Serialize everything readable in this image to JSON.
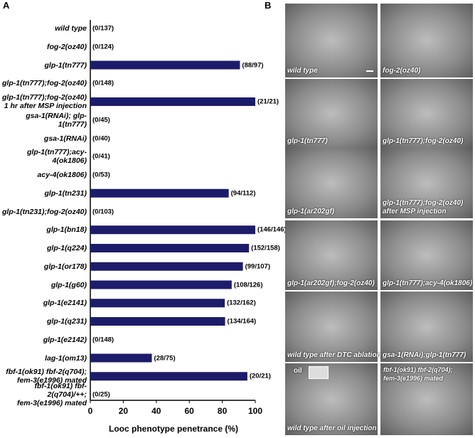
{
  "panel_labels": [
    "A",
    "B"
  ],
  "chart_data": {
    "type": "bar",
    "orientation": "horizontal",
    "x_label": "Looc phenotype penetrance (%)",
    "categories": [
      "wild type",
      "fog-2(oz40)",
      "glp-1(tn777)",
      "glp-1(tn777);fog-2(oz40)",
      "glp-1(tn777);fog-2(oz40)\n1 hr after MSP injection",
      "gsa-1(RNAi); glp-1(tn777)",
      "gsa-1(RNAi)",
      "glp-1(tn777);acy-4(ok1806)",
      "acy-4(ok1806)",
      "glp-1(tn231)",
      "glp-1(tn231);fog-2(oz40)",
      "glp-1(bn18)",
      "glp-1(q224)",
      "glp-1(or178)",
      "glp-1(g60)",
      "glp-1(e2141)",
      "glp-1(q231)",
      "glp-1(e2142)",
      "lag-1(om13)",
      "fbf-1(ok91) fbf-2(q704);\nfem-3(e1996) mated",
      "fbf-1(ok91) fbf-2(q704)/++;\nfem-3(e1996) mated"
    ],
    "values": [
      0,
      0,
      90.7,
      0,
      100,
      0,
      0,
      0,
      0,
      83.9,
      0,
      100,
      96.2,
      92.5,
      85.7,
      81.5,
      81.7,
      0,
      37.3,
      95.2,
      0
    ],
    "value_labels": [
      "(0/137)",
      "(0/124)",
      "(88/97)",
      "(0/148)",
      "(21/21)",
      "(0/45)",
      "(0/40)",
      "(0/41)",
      "(0/53)",
      "(94/112)",
      "(0/103)",
      "(146/146)",
      "(152/158)",
      "(99/107)",
      "(108/126)",
      "(132/162)",
      "(134/164)",
      "(0/148)",
      "(28/75)",
      "(20/21)",
      "(0/25)"
    ],
    "color": "#1c1c6b",
    "xlim": [
      0,
      100
    ],
    "xticks": [
      0,
      20,
      40,
      60,
      80,
      100
    ]
  },
  "panel_b": {
    "images": [
      "wild type",
      "fog-2(oz40)",
      "glp-1(tn777)",
      "glp-1(tn777);fog-2(oz40)",
      "glp-1(ar202gf)",
      "glp-1(tn777);fog-2(oz40)\nafter MSP injection",
      "glp-1(ar202gf);fog-2(oz40)",
      "glp-1(tn777);acy-4(ok1806)",
      "wild type after DTC ablation",
      "gsa-1(RNAi);glp-1(tn777)",
      "wild type after oil injection",
      "fbf-1(ok91) fbf-2(q704);\nfem-3(e1996) mated"
    ],
    "oil_label": "oil"
  }
}
